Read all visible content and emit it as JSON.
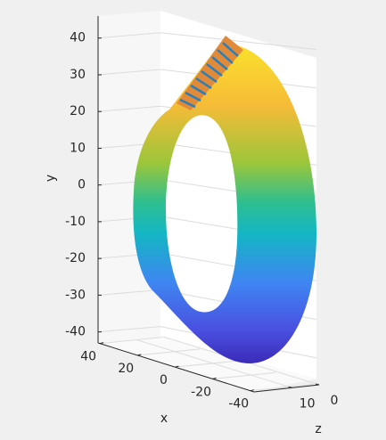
{
  "chart_data": {
    "type": "surface3d",
    "xlabel": "x",
    "ylabel": "y",
    "zlabel": "z",
    "xlim": [
      -42,
      41
    ],
    "xticks": [
      40,
      20,
      0,
      -20,
      -40
    ],
    "ylim": [
      -43,
      46
    ],
    "yticks": [
      40,
      30,
      20,
      10,
      0,
      -10,
      -20,
      -30,
      -40
    ],
    "zlim": [
      0,
      24
    ],
    "zticks": [
      0,
      10
    ],
    "grid": true
  }
}
